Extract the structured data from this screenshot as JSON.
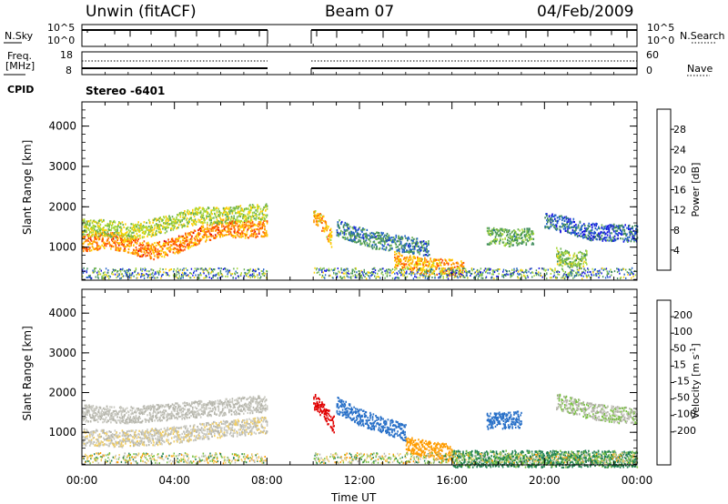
{
  "header": {
    "station": "Unwin (fitACF)",
    "beam": "Beam 07",
    "date": "04/Feb/2009"
  },
  "strips": {
    "nsky": {
      "label": "N.Sky",
      "ticks": [
        "10^5",
        "10^0"
      ]
    },
    "nsearch": {
      "label": "N.Search",
      "ticks": [
        "10^5",
        "10^0"
      ]
    },
    "freq": {
      "label_line1": "Freq.",
      "label_line2": "[MHz]",
      "ticks": [
        "18",
        "8"
      ]
    },
    "nave": {
      "label": "Nave",
      "ticks": [
        "60",
        "0"
      ]
    },
    "cpid": {
      "label": "CPID",
      "value": "Stereo -6401"
    }
  },
  "colors": {
    "power": [
      "#1414e0",
      "#2060c8",
      "#3d8a5a",
      "#68b050",
      "#a8d838",
      "#ffd000",
      "#ff9800",
      "#ff5000",
      "#e00000"
    ],
    "velocity": [
      "#e00000",
      "#ff5a00",
      "#ff9c00",
      "#f0cc60",
      "#c8c8c0",
      "#b4b4aa",
      "#78c040",
      "#208050",
      "#2870c8",
      "#1a2fd0"
    ]
  },
  "chart_data": [
    {
      "type": "heatmap",
      "name": "power-panel",
      "xlabel": "Time UT",
      "ylabel": "Slant Range [km]",
      "xlim": [
        0,
        24
      ],
      "ylim": [
        180,
        4600
      ],
      "x_ticks": [
        "00:00",
        "04:00",
        "08:00",
        "12:00",
        "16:00",
        "20:00",
        "00:00"
      ],
      "y_ticks": [
        1000,
        2000,
        3000,
        4000
      ],
      "colorbar": {
        "label": "Power [dB]",
        "ticks": [
          4,
          8,
          12,
          16,
          20,
          24,
          28
        ],
        "range": [
          0,
          32
        ]
      },
      "data_gap": [
        8.0,
        10.0
      ],
      "echo_bands": [
        {
          "t": [
            0.0,
            1.0,
            2.0,
            3.0,
            4.0,
            5.0,
            6.0,
            7.0,
            8.0
          ],
          "center_km": [
            1100,
            1200,
            1100,
            900,
            1050,
            1300,
            1500,
            1450,
            1500
          ],
          "value": 24
        },
        {
          "t": [
            0.0,
            1.0,
            2.0,
            3.0,
            4.0,
            5.0,
            6.0,
            7.0,
            8.0
          ],
          "center_km": [
            1500,
            1500,
            1400,
            1500,
            1650,
            1800,
            1800,
            1850,
            1900
          ],
          "value": 16
        },
        {
          "t": [
            10.0,
            10.4,
            10.8
          ],
          "center_km": [
            1800,
            1600,
            1200
          ],
          "value": 22
        },
        {
          "t": [
            11.0,
            12.5,
            14.0,
            15.0
          ],
          "center_km": [
            1500,
            1200,
            1100,
            1000
          ],
          "value": 8
        },
        {
          "t": [
            13.5,
            14.5,
            15.5,
            16.5
          ],
          "center_km": [
            700,
            560,
            520,
            480
          ],
          "value": 22
        },
        {
          "t": [
            17.5,
            18.5,
            19.5
          ],
          "center_km": [
            1300,
            1250,
            1300
          ],
          "value": 12
        },
        {
          "t": [
            20.0,
            21.0,
            22.0,
            24.0
          ],
          "center_km": [
            1700,
            1550,
            1400,
            1350
          ],
          "value": 6
        },
        {
          "t": [
            20.5,
            21.2,
            21.8
          ],
          "center_km": [
            800,
            700,
            750
          ],
          "value": 14
        }
      ]
    },
    {
      "type": "heatmap",
      "name": "velocity-panel",
      "xlabel": "Time UT",
      "ylabel": "Slant Range [km]",
      "xlim": [
        0,
        24
      ],
      "ylim": [
        180,
        4600
      ],
      "x_ticks": [
        "00:00",
        "04:00",
        "08:00",
        "12:00",
        "16:00",
        "20:00",
        "00:00"
      ],
      "y_ticks": [
        1000,
        2000,
        3000,
        4000
      ],
      "colorbar": {
        "label": "Velocity [m s",
        "label_sup": "-1",
        "label_end": "]",
        "ticks": [
          "200",
          "100",
          "50",
          "15",
          "-15",
          "-50",
          "-100",
          "-200"
        ],
        "range": [
          -250,
          250
        ]
      },
      "data_gap": [
        8.0,
        10.0
      ],
      "echo_bands": [
        {
          "t": [
            0.0,
            2.0,
            4.0,
            6.0,
            8.0
          ],
          "center_km": [
            1500,
            1450,
            1550,
            1650,
            1750
          ],
          "value": 0
        },
        {
          "t": [
            0.0,
            2.0,
            4.0,
            6.0,
            8.0
          ],
          "center_km": [
            900,
            850,
            950,
            1100,
            1200
          ],
          "value": -8
        },
        {
          "t": [
            10.0,
            10.5,
            10.9
          ],
          "center_km": [
            1800,
            1500,
            1200
          ],
          "value": -220
        },
        {
          "t": [
            11.0,
            12.0,
            13.0,
            14.0
          ],
          "center_km": [
            1700,
            1400,
            1200,
            1000
          ],
          "value": 150
        },
        {
          "t": [
            14.0,
            15.0,
            16.0
          ],
          "center_km": [
            700,
            580,
            500
          ],
          "value": -80
        },
        {
          "t": [
            16.0,
            18.0,
            20.0,
            24.0
          ],
          "center_km": [
            350,
            350,
            350,
            350
          ],
          "value": 60
        },
        {
          "t": [
            17.5,
            19.0
          ],
          "center_km": [
            1300,
            1350
          ],
          "value": 150
        },
        {
          "t": [
            20.5,
            22.0,
            24.0
          ],
          "center_km": [
            1800,
            1550,
            1400
          ],
          "value": 10
        }
      ]
    }
  ],
  "xaxis_title": "Time UT"
}
